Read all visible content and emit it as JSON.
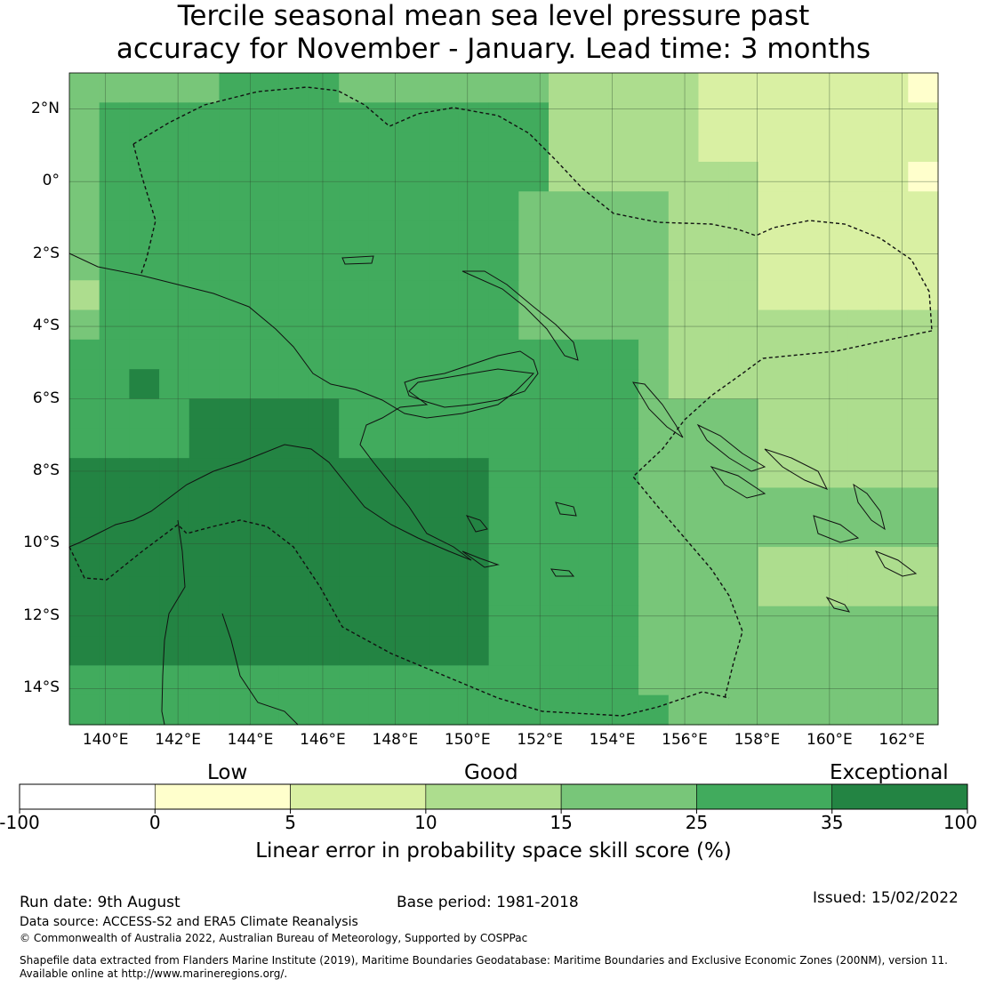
{
  "title_line1": "Tercile seasonal mean sea level pressure past",
  "title_line2": "accuracy for November - January. Lead time: 3 months",
  "map": {
    "lon_range": [
      139,
      163
    ],
    "lat_range": [
      -15,
      3
    ],
    "lat_ticks": [
      "2°N",
      "0°",
      "2°S",
      "4°S",
      "6°S",
      "8°S",
      "10°S",
      "12°S",
      "14°S"
    ],
    "lon_ticks": [
      "140°E",
      "142°E",
      "144°E",
      "146°E",
      "148°E",
      "150°E",
      "152°E",
      "154°E",
      "156°E",
      "158°E",
      "160°E",
      "162°E"
    ],
    "gridlines": true
  },
  "legend": {
    "categories": [
      "Low",
      "Good",
      "Exceptional"
    ],
    "ticks": [
      "-100",
      "0",
      "5",
      "10",
      "15",
      "25",
      "35",
      "100"
    ],
    "colors": [
      "#ffffff",
      "#ffffcc",
      "#d9f0a3",
      "#addd8e",
      "#78c679",
      "#41ab5d",
      "#238443"
    ],
    "axis_label": "Linear error in probability space skill score (%)"
  },
  "footer": {
    "run_date": "Run date: 9th August",
    "base_period": "Base period: 1981-2018",
    "issued": "Issued: 15/02/2022",
    "data_source": "Data source: ACCESS-S2 and ERA5 Climate Reanalysis",
    "copyright": "© Commonwealth of Australia 2022, Australian Bureau of Meteorology, Supported by COSPPac",
    "shapefile_line1": "Shapefile data extracted from Flanders Marine Institute (2019), Maritime Boundaries Geodatabase: Maritime Boundaries and Exclusive Economic Zones (200NM), version 11.",
    "shapefile_line2": "Available online at http://www.marineregions.org/."
  }
}
